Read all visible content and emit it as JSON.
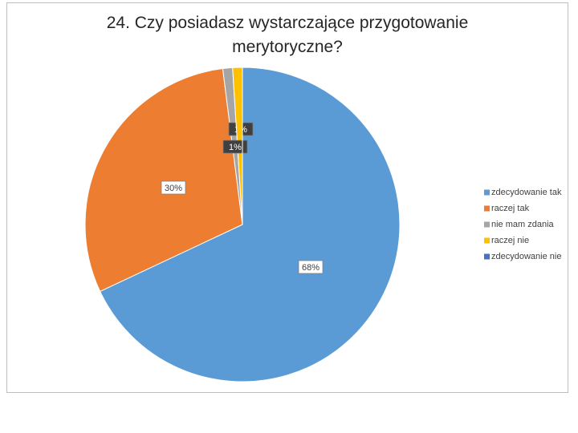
{
  "chart_data": {
    "type": "pie",
    "title": "24. Czy posiadasz wystarczające przygotowanie merytoryczne?",
    "categories": [
      "zdecydowanie tak",
      "raczej tak",
      "nie mam zdania",
      "raczej nie",
      "zdecydowanie nie"
    ],
    "values": [
      68,
      30,
      1,
      1,
      0
    ],
    "value_labels": [
      "68%",
      "30%",
      "1%",
      "1%",
      null
    ],
    "colors": [
      "#5b9bd5",
      "#ed7d31",
      "#a5a5a5",
      "#ffc000",
      "#4472c4"
    ],
    "legend": "right"
  }
}
